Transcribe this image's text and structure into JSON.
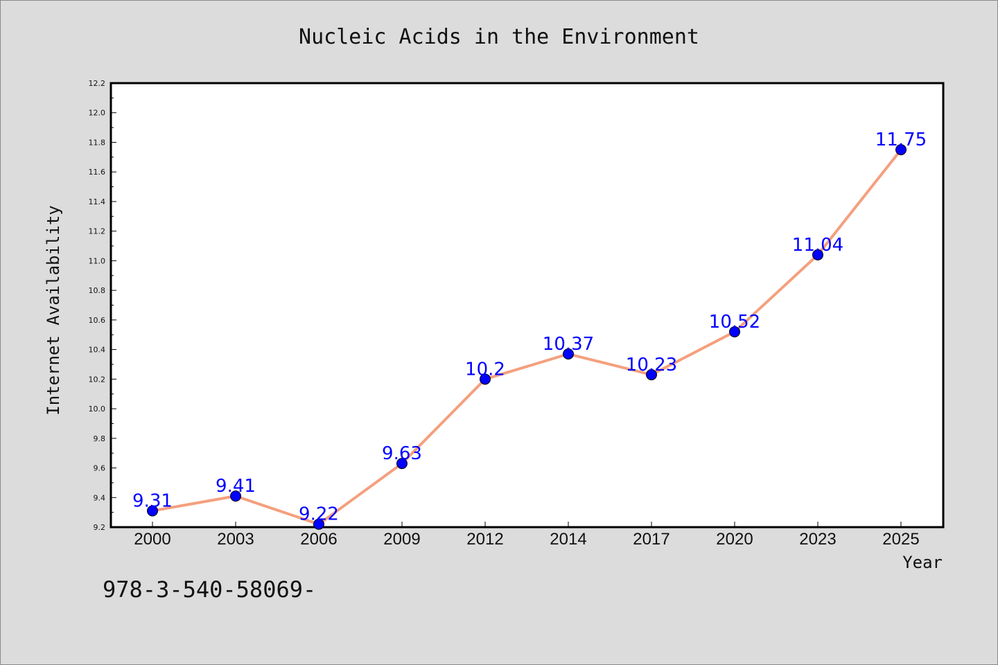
{
  "footer": {
    "text": "978-3-540-58069-"
  },
  "colors": {
    "background": "#dcdcdc",
    "plot_background": "#ffffff",
    "line": "#f4a07e",
    "marker": "#0000ff",
    "data_label": "#0000ff",
    "text": "#111111"
  },
  "chart_data": {
    "type": "line",
    "title": "Nucleic Acids in the Environment",
    "xlabel": "Year",
    "ylabel": "Internet Availability",
    "categories": [
      "2000",
      "2003",
      "2006",
      "2009",
      "2012",
      "2014",
      "2017",
      "2020",
      "2023",
      "2025"
    ],
    "series": [
      {
        "values": [
          9.31,
          9.41,
          9.22,
          9.63,
          10.2,
          10.37,
          10.23,
          10.52,
          11.04,
          11.75
        ],
        "labels": [
          "9.31",
          "9.41",
          "9.22",
          "9.63",
          "10.2",
          "10.37",
          "10.23",
          "10.52",
          "11.04",
          "11.75"
        ]
      }
    ],
    "ylim": [
      9.2,
      12.2
    ],
    "yticks": [
      "9.2",
      "9.4",
      "9.6",
      "9.8",
      "10.0",
      "10.2",
      "10.4",
      "10.6",
      "10.8",
      "11.0",
      "11.2",
      "11.4",
      "11.6",
      "11.8",
      "12.0",
      "12.2"
    ],
    "grid": false,
    "legend": "none"
  }
}
